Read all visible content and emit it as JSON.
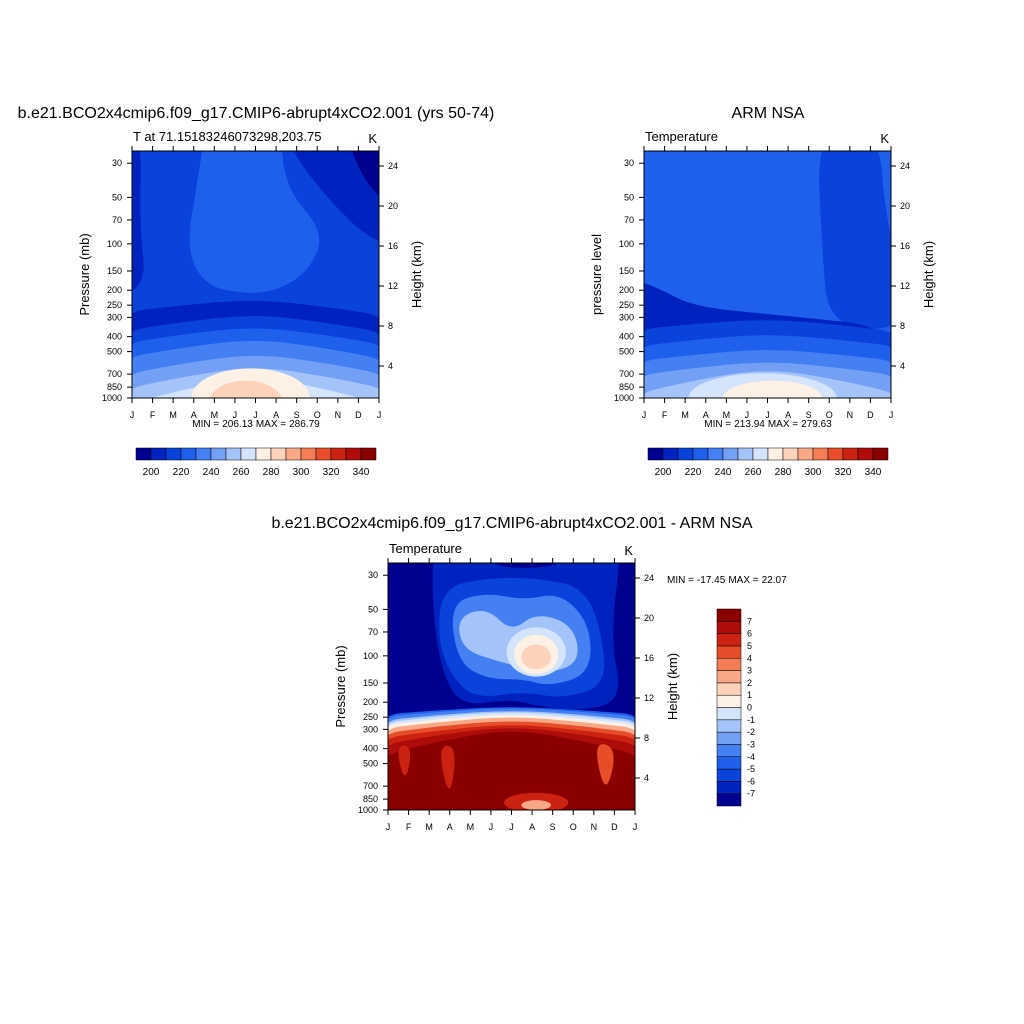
{
  "chart_data": [
    {
      "type": "contour",
      "title": "b.e21.BCO2x4cmip6.f09_g17.CMIP6-abrupt4xCO2.001 (yrs 50-74)",
      "subtitle": "T at 71.15183246073298,203.75",
      "units": "K",
      "ylabel": "Pressure (mb)",
      "y2label": "Height (km)",
      "categories": [
        "J",
        "F",
        "M",
        "A",
        "M",
        "J",
        "J",
        "A",
        "S",
        "O",
        "N",
        "D",
        "J"
      ],
      "ylim": [
        1000,
        25
      ],
      "yscale": "log",
      "yticks": [
        30,
        50,
        70,
        100,
        150,
        200,
        250,
        300,
        400,
        500,
        700,
        850,
        1000
      ],
      "y2lim": [
        0.8,
        25.5
      ],
      "y2ticks": [
        4,
        8,
        12,
        16,
        20,
        24
      ],
      "stats": {
        "min_label": "MIN =",
        "min": 206.13,
        "max_label": "MAX =",
        "max": 286.79
      },
      "colors": [
        "#00008f",
        "#0022bf",
        "#0a42dc",
        "#1e60ec",
        "#4480f2",
        "#73a0f5",
        "#a4c4f9",
        "#d4e4fb",
        "#fdf0e4",
        "#fcd2bb",
        "#f9a887",
        "#f47d55",
        "#e64d28",
        "#cc2212",
        "#ad0c0a",
        "#8a0000"
      ],
      "colorbar": {
        "orientation": "horizontal",
        "clim": [
          190,
          350
        ],
        "ticks": [
          200,
          220,
          240,
          260,
          280,
          300,
          320,
          340
        ]
      }
    },
    {
      "type": "contour",
      "title": "ARM NSA",
      "subtitle": "Temperature",
      "units": "K",
      "ylabel": "pressure level",
      "y2label": "Height (km)",
      "categories": [
        "J",
        "F",
        "M",
        "A",
        "M",
        "J",
        "J",
        "A",
        "S",
        "O",
        "N",
        "D",
        "J"
      ],
      "ylim": [
        1000,
        25
      ],
      "yscale": "log",
      "yticks": [
        30,
        50,
        70,
        100,
        150,
        200,
        250,
        300,
        400,
        500,
        700,
        850,
        1000
      ],
      "y2lim": [
        0.8,
        25.5
      ],
      "y2ticks": [
        4,
        8,
        12,
        16,
        20,
        24
      ],
      "stats": {
        "min_label": "MIN =",
        "min": 213.94,
        "max_label": "MAX =",
        "max": 279.63
      },
      "colors": [
        "#00008f",
        "#0022bf",
        "#0a42dc",
        "#1e60ec",
        "#4480f2",
        "#73a0f5",
        "#a4c4f9",
        "#d4e4fb",
        "#fdf0e4",
        "#fcd2bb",
        "#f9a887",
        "#f47d55",
        "#e64d28",
        "#cc2212",
        "#ad0c0a",
        "#8a0000"
      ],
      "colorbar": {
        "orientation": "horizontal",
        "clim": [
          190,
          350
        ],
        "ticks": [
          200,
          220,
          240,
          260,
          280,
          300,
          320,
          340
        ]
      }
    },
    {
      "type": "contour",
      "title": "b.e21.BCO2x4cmip6.f09_g17.CMIP6-abrupt4xCO2.001 - ARM NSA",
      "subtitle": "Temperature",
      "units": "K",
      "ylabel": "Pressure (mb)",
      "y2label": "Height (km)",
      "categories": [
        "J",
        "F",
        "M",
        "A",
        "M",
        "J",
        "J",
        "A",
        "S",
        "O",
        "N",
        "D",
        "J"
      ],
      "ylim": [
        1000,
        25
      ],
      "yscale": "log",
      "yticks": [
        30,
        50,
        70,
        100,
        150,
        200,
        250,
        300,
        400,
        500,
        700,
        850,
        1000
      ],
      "y2lim": [
        0.8,
        25.5
      ],
      "y2ticks": [
        4,
        8,
        12,
        16,
        20,
        24
      ],
      "stats": {
        "min_label": "MIN =",
        "min": -17.45,
        "max_label": "MAX =",
        "max": 22.07
      },
      "colors": [
        "#00008f",
        "#0022bf",
        "#0a42dc",
        "#1e60ec",
        "#4480f2",
        "#73a0f5",
        "#a4c4f9",
        "#d4e4fb",
        "#fdf0e4",
        "#fcd2bb",
        "#f9a887",
        "#f47d55",
        "#e64d28",
        "#cc2212",
        "#ad0c0a",
        "#8a0000"
      ],
      "colorbar": {
        "orientation": "vertical",
        "clim": [
          -8,
          8
        ],
        "ticks": [
          -7,
          -6,
          -5,
          -4,
          -3,
          -2,
          -1,
          0,
          1,
          2,
          3,
          4,
          5,
          6,
          7
        ]
      }
    }
  ]
}
